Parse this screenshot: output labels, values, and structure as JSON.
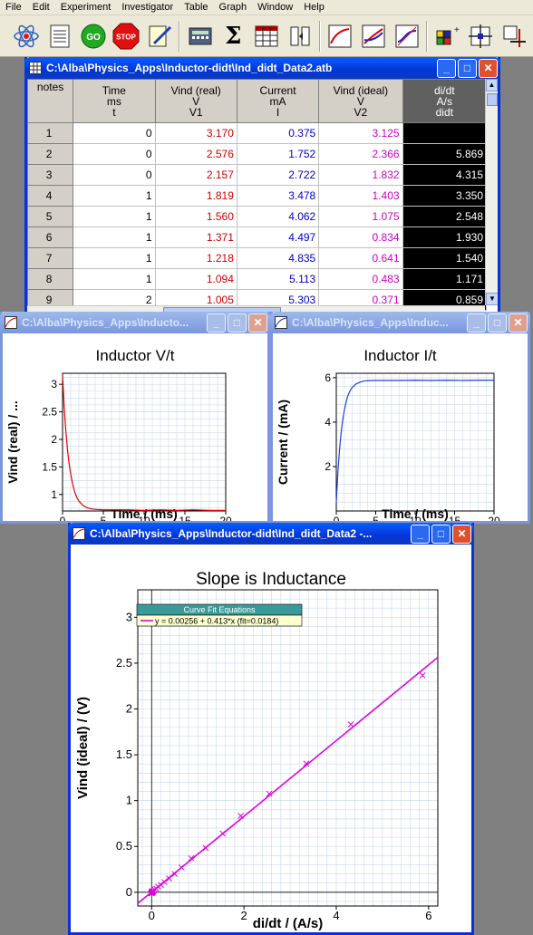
{
  "menu": [
    "File",
    "Edit",
    "Experiment",
    "Investigator",
    "Table",
    "Graph",
    "Window",
    "Help"
  ],
  "toolbar": {
    "go_label": "GO",
    "stop_label": "STOP",
    "sigma_label": "Σ"
  },
  "table_window": {
    "title": "C:\\Alba\\Physics_Apps\\Inductor-didt\\Ind_didt_Data2.atb",
    "columns": [
      {
        "name": "notes"
      },
      {
        "line1": "Time",
        "line2": "ms",
        "line3": "t"
      },
      {
        "line1": "Vind (real)",
        "line2": "V",
        "line3": "V1"
      },
      {
        "line1": "Current",
        "line2": "mA",
        "line3": "I"
      },
      {
        "line1": "Vind (ideal)",
        "line2": "V",
        "line3": "V2"
      },
      {
        "line1": "di/dt",
        "line2": "A/s",
        "line3": "didt"
      }
    ],
    "rows": [
      {
        "n": "1",
        "t": "0",
        "v1": "3.170",
        "i": "0.375",
        "v2": "3.125",
        "d": ""
      },
      {
        "n": "2",
        "t": "0",
        "v1": "2.576",
        "i": "1.752",
        "v2": "2.366",
        "d": "5.869"
      },
      {
        "n": "3",
        "t": "0",
        "v1": "2.157",
        "i": "2.722",
        "v2": "1.832",
        "d": "4.315"
      },
      {
        "n": "4",
        "t": "1",
        "v1": "1.819",
        "i": "3.478",
        "v2": "1.403",
        "d": "3.350"
      },
      {
        "n": "5",
        "t": "1",
        "v1": "1.560",
        "i": "4.062",
        "v2": "1.075",
        "d": "2.548"
      },
      {
        "n": "6",
        "t": "1",
        "v1": "1.371",
        "i": "4.497",
        "v2": "0.834",
        "d": "1.930"
      },
      {
        "n": "7",
        "t": "1",
        "v1": "1.218",
        "i": "4.835",
        "v2": "0.641",
        "d": "1.540"
      },
      {
        "n": "8",
        "t": "1",
        "v1": "1.094",
        "i": "5.113",
        "v2": "0.483",
        "d": "1.171"
      },
      {
        "n": "9",
        "t": "2",
        "v1": "1.005",
        "i": "5.303",
        "v2": "0.371",
        "d": "0.859"
      }
    ]
  },
  "graph_vt": {
    "title_bar": "C:\\Alba\\Physics_Apps\\Inducto...",
    "title": "Inductor V/t",
    "xlabel": "Time / (ms)",
    "ylabel": "Vind (real) / ..."
  },
  "graph_it": {
    "title_bar": "C:\\Alba\\Physics_Apps\\Induc...",
    "title": "Inductor I/t",
    "xlabel": "Time / (ms)",
    "ylabel": "Current / (mA)"
  },
  "graph_slope": {
    "title_bar": "C:\\Alba\\Physics_Apps\\Inductor-didt\\Ind_didt_Data2 -...",
    "title": "Slope is Inductance",
    "xlabel": "di/dt / (A/s)",
    "ylabel": "Vind (ideal) / (V)",
    "fit_header": "Curve Fit Equations",
    "fit_equation": "y = 0.00256 + 0.413*x (fit=0.0184)"
  },
  "chart_data": [
    {
      "type": "line",
      "title": "Inductor V/t",
      "xlabel": "Time / (ms)",
      "ylabel": "Vind (real) / ...",
      "xlim": [
        0,
        20
      ],
      "ylim": [
        0.7,
        3.2
      ],
      "xticks": [
        0,
        5,
        10,
        15,
        20
      ],
      "yticks": [
        1,
        1.5,
        2,
        2.5,
        3
      ],
      "color": "#e00000",
      "x": [
        0,
        0.2,
        0.4,
        0.6,
        0.8,
        1.0,
        1.2,
        1.4,
        1.6,
        1.8,
        2.0,
        2.5,
        3.0,
        3.5,
        4,
        5,
        6,
        8,
        10,
        12,
        14,
        16,
        18,
        20
      ],
      "y": [
        3.17,
        2.58,
        2.16,
        1.82,
        1.56,
        1.37,
        1.22,
        1.09,
        1.0,
        0.93,
        0.88,
        0.8,
        0.76,
        0.74,
        0.73,
        0.72,
        0.72,
        0.72,
        0.71,
        0.72,
        0.71,
        0.72,
        0.71,
        0.71
      ],
      "grid": true
    },
    {
      "type": "line",
      "title": "Inductor I/t",
      "xlabel": "Time / (ms)",
      "ylabel": "Current / (mA)",
      "xlim": [
        0,
        20
      ],
      "ylim": [
        0,
        6.2
      ],
      "xticks": [
        0,
        5,
        10,
        15,
        20
      ],
      "yticks": [
        2,
        4,
        6
      ],
      "color": "#2040e0",
      "x": [
        0,
        0.2,
        0.4,
        0.6,
        0.8,
        1.0,
        1.2,
        1.4,
        1.6,
        1.8,
        2.0,
        2.5,
        3.0,
        3.5,
        4,
        5,
        6,
        8,
        10,
        12,
        14,
        16,
        18,
        20
      ],
      "y": [
        0.38,
        1.75,
        2.72,
        3.48,
        4.06,
        4.5,
        4.84,
        5.11,
        5.3,
        5.45,
        5.55,
        5.72,
        5.8,
        5.85,
        5.87,
        5.88,
        5.88,
        5.88,
        5.89,
        5.88,
        5.89,
        5.88,
        5.89,
        5.89
      ],
      "grid": true
    },
    {
      "type": "scatter",
      "title": "Slope is Inductance",
      "xlabel": "di/dt / (A/s)",
      "ylabel": "Vind (ideal) / (V)",
      "xlim": [
        -0.3,
        6.2
      ],
      "ylim": [
        -0.15,
        3.3
      ],
      "xticks": [
        0,
        2,
        4,
        6
      ],
      "yticks": [
        0,
        0.5,
        1,
        1.5,
        2,
        2.5,
        3
      ],
      "color": "#e000e0",
      "x": [
        5.869,
        4.315,
        3.35,
        2.548,
        1.93,
        1.54,
        1.171,
        0.859,
        0.65,
        0.5,
        0.38,
        0.28,
        0.2,
        0.14,
        0.1,
        0.07,
        0.05,
        0.03,
        0.02,
        0.01,
        0.0,
        -0.01,
        0.005,
        0.015,
        0.0,
        0.02,
        0.01,
        -0.005,
        0.03,
        0.008
      ],
      "y": [
        2.366,
        1.832,
        1.403,
        1.075,
        0.834,
        0.641,
        0.483,
        0.371,
        0.27,
        0.2,
        0.15,
        0.11,
        0.08,
        0.06,
        0.04,
        0.03,
        0.02,
        0.01,
        0.005,
        0.0,
        0.0,
        -0.01,
        0.01,
        0.005,
        -0.005,
        0.0,
        0.01,
        0.0,
        0.005,
        -0.01
      ],
      "fit": {
        "intercept": 0.00256,
        "slope": 0.413
      },
      "grid": true
    }
  ]
}
